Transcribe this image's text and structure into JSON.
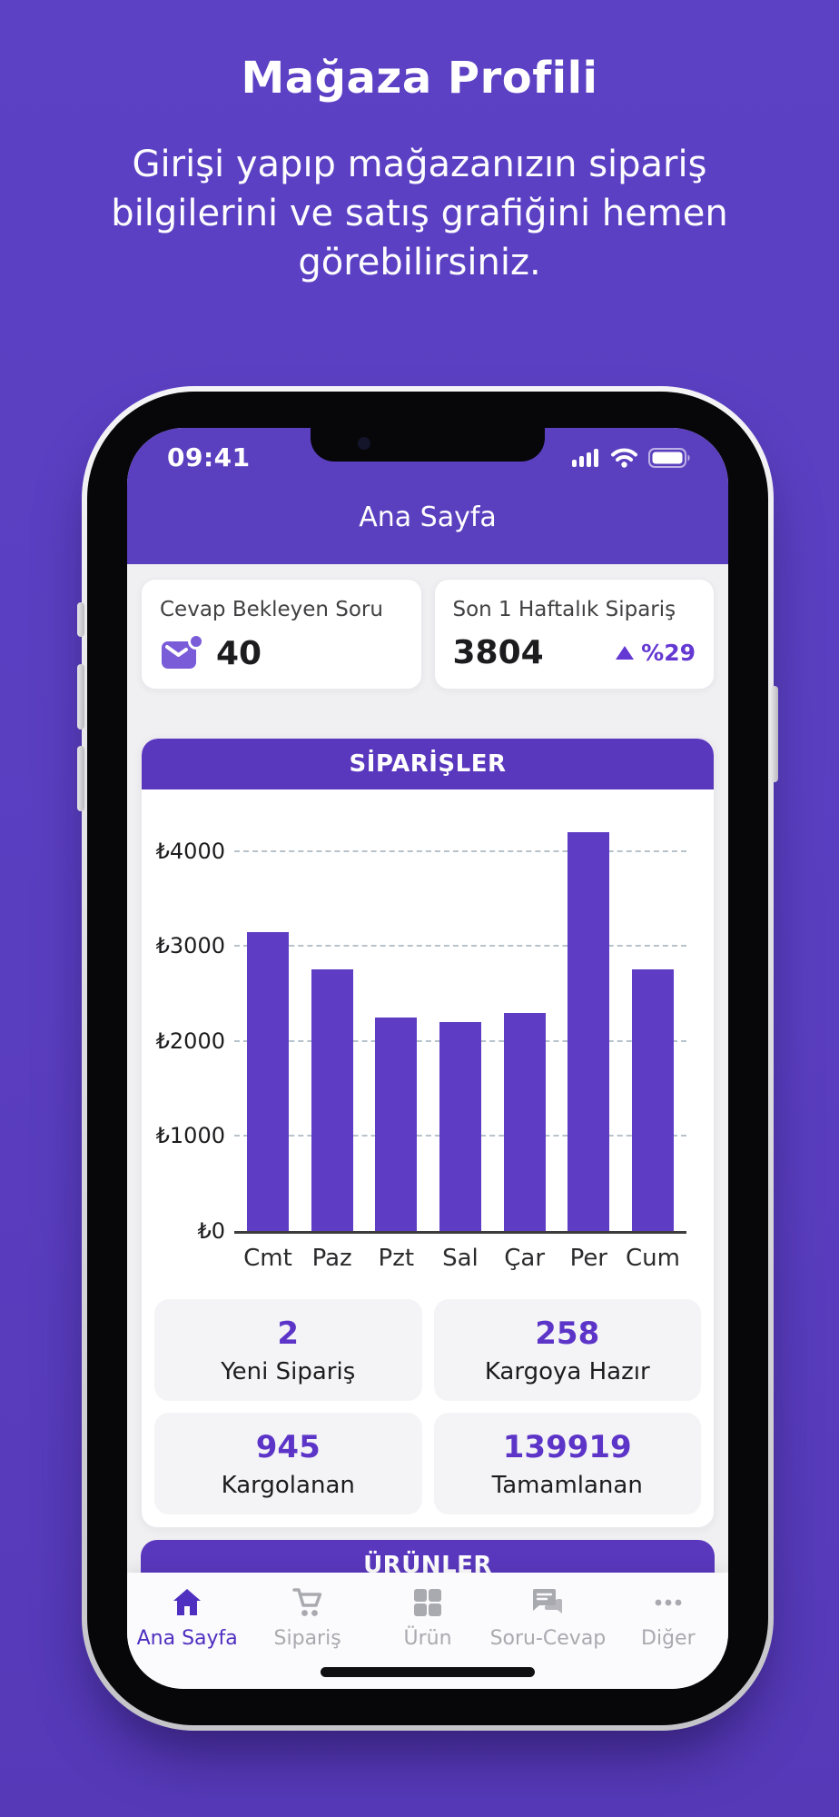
{
  "hero": {
    "title": "Mağaza Profili",
    "subtitle_lines": [
      "Girişi yapıp mağazanızın sipariş",
      "bilgilerini ve satış grafiğini hemen",
      "görebilirsiniz."
    ]
  },
  "phone": {
    "status_bar": {
      "time": "09:41",
      "icons": [
        "signal-icon",
        "wifi-icon",
        "battery-icon"
      ]
    },
    "header": {
      "title": "Ana Sayfa"
    },
    "summary_cards": [
      {
        "label": "Cevap Bekleyen Soru",
        "value": "40",
        "icon": "unread-mail-icon"
      },
      {
        "label": "Son 1 Haftalık Sipariş",
        "value": "3804",
        "trend": "%29",
        "trend_direction": "up",
        "icon": "trend-up-icon"
      }
    ],
    "orders_section": {
      "title": "SİPARİŞLER"
    },
    "order_stats": [
      {
        "value": "2",
        "label": "Yeni Sipariş"
      },
      {
        "value": "258",
        "label": "Kargoya Hazır"
      },
      {
        "value": "945",
        "label": "Kargolanan"
      },
      {
        "value": "139919",
        "label": "Tamamlanan"
      }
    ],
    "products_section": {
      "title": "ÜRÜNLER"
    },
    "tab_bar": [
      {
        "label": "Ana Sayfa",
        "icon": "home-icon",
        "active": true
      },
      {
        "label": "Sipariş",
        "icon": "cart-icon",
        "active": false
      },
      {
        "label": "Ürün",
        "icon": "grid-icon",
        "active": false
      },
      {
        "label": "Soru-Cevap",
        "icon": "chat-icon",
        "active": false
      },
      {
        "label": "Diğer",
        "icon": "more-dots-icon",
        "active": false
      }
    ]
  },
  "chart_data": {
    "type": "bar",
    "title": "SİPARİŞLER",
    "categories": [
      "Cmt",
      "Paz",
      "Pzt",
      "Sal",
      "Çar",
      "Per",
      "Cum"
    ],
    "values": [
      3150,
      2750,
      2250,
      2200,
      2300,
      4200,
      2750
    ],
    "currency": "₺",
    "yticks": [
      0,
      1000,
      2000,
      3000,
      4000
    ],
    "ytick_labels": [
      "₺0",
      "₺1000",
      "₺2000",
      "₺3000",
      "₺4000"
    ],
    "ylim": [
      0,
      4400
    ],
    "grid": "dashed-horizontal",
    "legend": "none",
    "xlabel": "",
    "ylabel": "",
    "bar_color": "#5e3dc4"
  },
  "colors": {
    "background": "#5a3ec0",
    "header_purple": "#5a3fbe",
    "banner_purple": "#5a38be",
    "bar_purple": "#5e3dc4",
    "accent_purple": "#5c35c8",
    "trend_purple": "#6438d3",
    "mail_icon_purple": "#7a5bd8",
    "inactive_gray": "#a9a9b0",
    "app_background": "#f0f0f2"
  }
}
